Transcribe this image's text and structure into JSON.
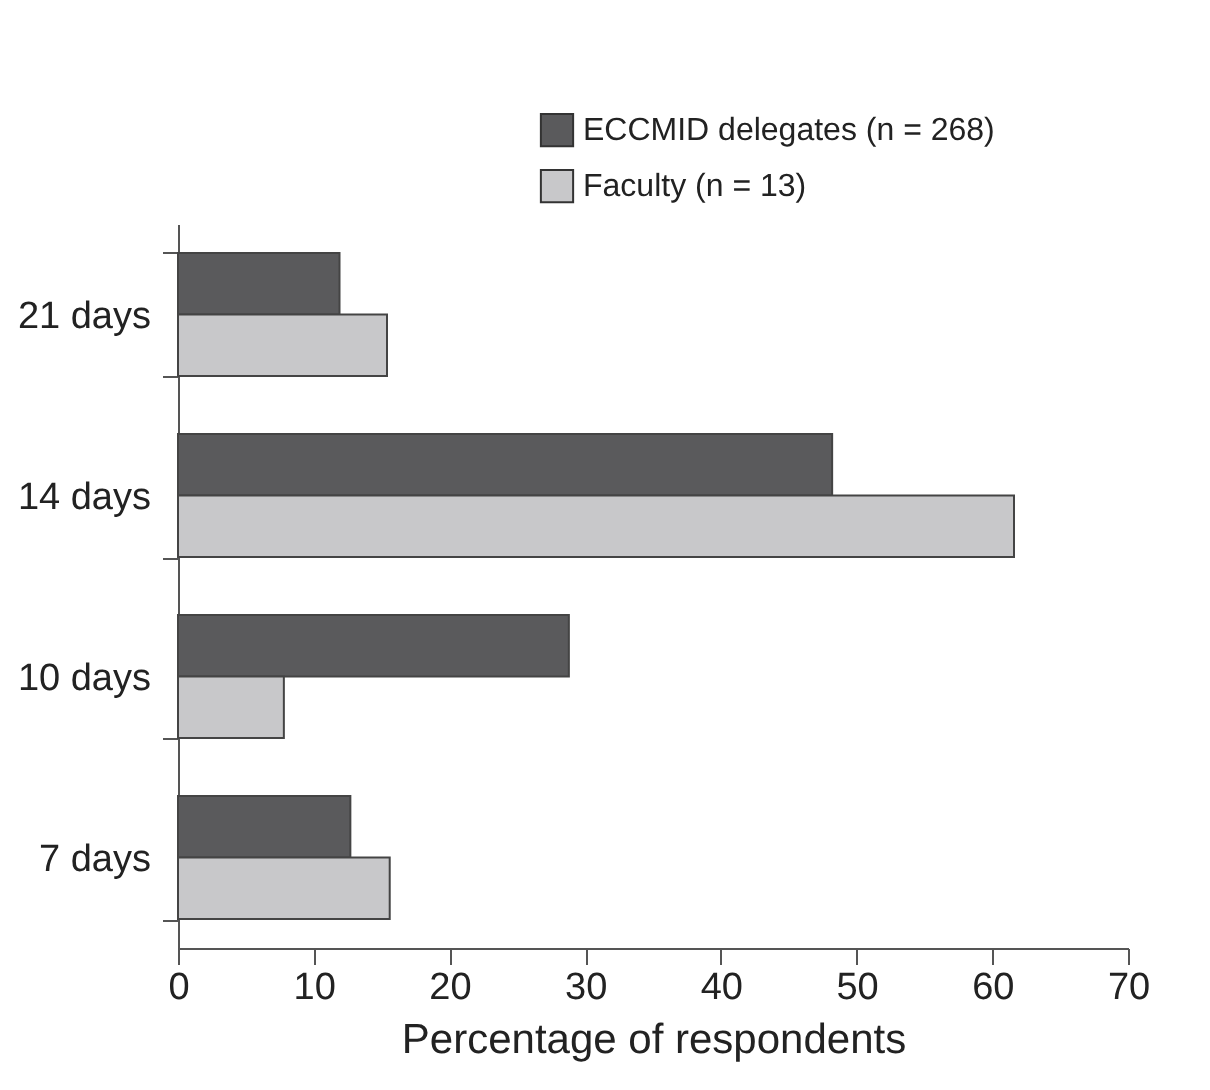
{
  "chart_data": {
    "type": "bar",
    "orientation": "horizontal",
    "categories": [
      "21 days",
      "14 days",
      "10 days",
      "7 days"
    ],
    "series": [
      {
        "name": "ECCMID delegates (n = 268)",
        "color": "#5a5a5c",
        "values": [
          11.9,
          48.2,
          28.8,
          12.7
        ]
      },
      {
        "name": "Faculty (n = 13)",
        "color": "#c8c8ca",
        "values": [
          15.4,
          61.6,
          7.8,
          15.6
        ]
      }
    ],
    "xlabel": "Percentage of respondents",
    "xlim": [
      0,
      70
    ],
    "xticks": [
      0,
      10,
      20,
      30,
      40,
      50,
      60,
      70
    ],
    "legend": "top right",
    "grid": false
  }
}
